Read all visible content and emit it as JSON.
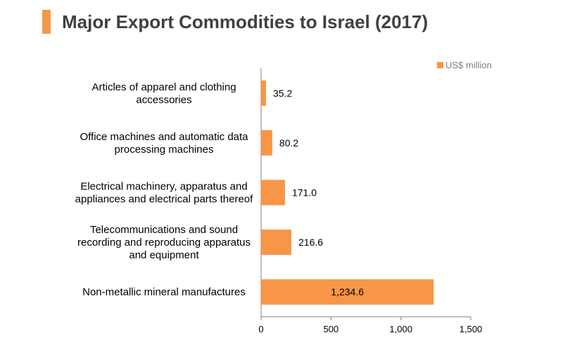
{
  "title": "Major Export Commodities to Israel (2017)",
  "colors": {
    "accent": "#f79646",
    "bar": "#f79646",
    "axis": "#808080"
  },
  "chart_data": {
    "type": "bar",
    "orientation": "horizontal",
    "categories": [
      [
        "Articles of apparel and clothing",
        "accessories"
      ],
      [
        "Office machines and automatic data",
        "processing machines"
      ],
      [
        "Electrical machinery, apparatus and",
        "appliances and electrical parts thereof"
      ],
      [
        "Telecommunications and sound",
        "recording and reproducing apparatus",
        "and equipment"
      ],
      [
        "Non-metallic mineral manufactures"
      ]
    ],
    "series": [
      {
        "name": "US$ million",
        "values": [
          35.2,
          80.2,
          171.0,
          216.6,
          1234.6
        ],
        "labels": [
          "35.2",
          "80.2",
          "171.0",
          "216.6",
          "1,234.6"
        ]
      }
    ],
    "xlim": [
      0,
      1500
    ],
    "ticks": [
      0,
      500,
      1000,
      1500
    ],
    "tick_labels": [
      "0",
      "500",
      "1,000",
      "1,500"
    ],
    "grid": false,
    "legend_position": "top-right"
  }
}
